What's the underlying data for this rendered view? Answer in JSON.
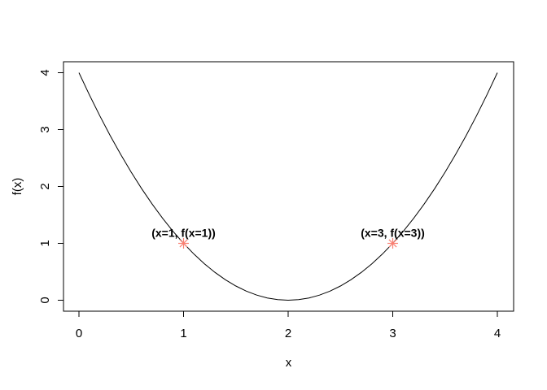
{
  "figure": {
    "background_color": "#ffffff",
    "box_color": "#000000",
    "curve_color": "#000000",
    "text_color": "#000000",
    "marker_color": "#FA8072"
  },
  "chart_data": {
    "type": "line",
    "title": "",
    "xlabel": "x",
    "ylabel": "f(x)",
    "xlim": [
      0,
      4
    ],
    "ylim": [
      0,
      4
    ],
    "x_ticks": [
      0,
      1,
      2,
      3,
      4
    ],
    "x_tick_labels": [
      "0",
      "1",
      "2",
      "3",
      "4"
    ],
    "y_ticks": [
      0,
      1,
      2,
      3,
      4
    ],
    "y_tick_labels": [
      "0",
      "1",
      "2",
      "3",
      "4"
    ],
    "grid": "off",
    "legend": "none",
    "curve": {
      "x": [
        0.0,
        0.1,
        0.2,
        0.3,
        0.4,
        0.5,
        0.6,
        0.7,
        0.8,
        0.9,
        1.0,
        1.1,
        1.2,
        1.3,
        1.4,
        1.5,
        1.6,
        1.7,
        1.8,
        1.9,
        2.0,
        2.1,
        2.2,
        2.3,
        2.4,
        2.5,
        2.6,
        2.7,
        2.8,
        2.9,
        3.0,
        3.1,
        3.2,
        3.3,
        3.4,
        3.5,
        3.6,
        3.7,
        3.8,
        3.9,
        4.0
      ],
      "y": [
        4.0,
        3.61,
        3.24,
        2.89,
        2.56,
        2.25,
        1.96,
        1.69,
        1.44,
        1.21,
        1.0,
        0.81,
        0.64,
        0.49,
        0.36,
        0.25,
        0.16,
        0.09,
        0.04,
        0.01,
        0.0,
        0.01,
        0.04,
        0.09,
        0.16,
        0.25,
        0.36,
        0.49,
        0.64,
        0.81,
        1.0,
        1.21,
        1.44,
        1.69,
        1.96,
        2.25,
        2.56,
        2.89,
        3.24,
        3.61,
        4.0
      ]
    },
    "annotated_points": [
      {
        "x": 1,
        "y": 1,
        "label": "(x=1, f(x=1))",
        "marker": "asterisk-8ray",
        "color": "#FA8072"
      },
      {
        "x": 3,
        "y": 1,
        "label": "(x=3, f(x=3))",
        "marker": "asterisk-8ray",
        "color": "#FA8072"
      }
    ]
  }
}
